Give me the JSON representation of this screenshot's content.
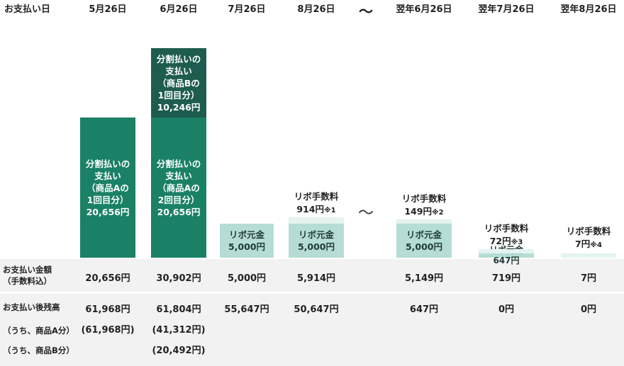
{
  "chart_data": {
    "type": "bar",
    "stacked": true,
    "unit": "円",
    "header_label": "お支払い日",
    "columns": [
      "5月26日",
      "6月26日",
      "7月26日",
      "8月26日",
      "〜",
      "翌年6月26日",
      "翌年7月26日",
      "翌年8月26日"
    ],
    "colors": {
      "bunkatsu_a": "#1a8066",
      "bunkatsu_b": "#1e5c4f",
      "revo_principal": "#b5ddd5",
      "revo_fee": "#e4f3ef"
    },
    "segments": [
      {
        "col": 0,
        "key": "bunkatsu_a",
        "value": 20656,
        "label": "分割払いの\n支払い\n（商品Aの\n1回目分）\n20,656円"
      },
      {
        "col": 1,
        "key": "bunkatsu_a",
        "value": 20656,
        "label": "分割払いの\n支払い\n（商品Aの\n2回目分）\n20,656円"
      },
      {
        "col": 1,
        "key": "bunkatsu_b",
        "value": 10246,
        "label": "分割払いの\n支払い\n（商品Bの\n1回目分）\n10,246円"
      },
      {
        "col": 2,
        "key": "revo_principal",
        "value": 5000,
        "label": "リボ元金\n5,000円"
      },
      {
        "col": 3,
        "key": "revo_principal",
        "value": 5000,
        "label": "リボ元金\n5,000円"
      },
      {
        "col": 3,
        "key": "revo_fee",
        "value": 914,
        "label_top": "リボ手数料",
        "label_value": "914円",
        "note": "※1"
      },
      {
        "col": 5,
        "key": "revo_principal",
        "value": 5000,
        "label": "リボ元金\n5,000円"
      },
      {
        "col": 5,
        "key": "revo_fee",
        "value": 149,
        "label_top": "リボ手数料",
        "label_value": "149円",
        "note": "※2"
      },
      {
        "col": 6,
        "key": "revo_principal",
        "value": 647,
        "label": "リボ元金\n647円"
      },
      {
        "col": 6,
        "key": "revo_fee",
        "value": 72,
        "label_top": "リボ手数料",
        "label_value": "72円",
        "note": "※3"
      },
      {
        "col": 7,
        "key": "revo_fee",
        "value": 7,
        "label_top": "リボ手数料",
        "label_value": "7円",
        "note": "※4"
      }
    ],
    "table": {
      "payment_label": "お支払い金額\n（手数料込）",
      "payment": [
        "20,656円",
        "30,902円",
        "5,000円",
        "5,914円",
        "",
        "5,149円",
        "719円",
        "7円"
      ],
      "balance_label": "お支払い後残高",
      "balance": [
        "61,968円",
        "61,804円",
        "55,647円",
        "50,647円",
        "",
        "647円",
        "0円",
        "0円"
      ],
      "a_label": "（うち、商品A分）",
      "a_balance": [
        "(61,968円)",
        "(41,312円)",
        "",
        "",
        "",
        "",
        "",
        ""
      ],
      "b_label": "（うち、商品B分）",
      "b_balance": [
        "",
        "(20,492円)",
        "",
        "",
        "",
        "",
        "",
        ""
      ]
    }
  }
}
